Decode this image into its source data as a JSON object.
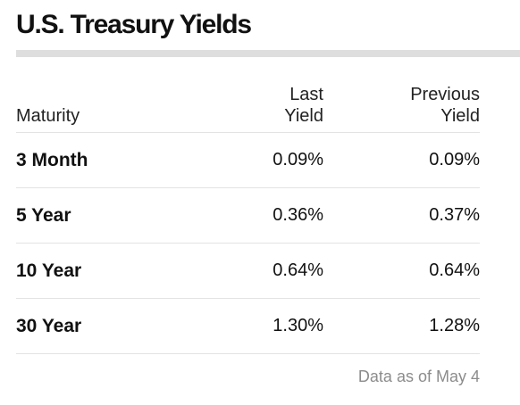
{
  "widget": {
    "title": "U.S. Treasury Yields",
    "footnote": "Data as of May 4"
  },
  "table": {
    "headers": {
      "maturity": "Maturity",
      "last_yield_line1": "Last",
      "last_yield_line2": "Yield",
      "previous_yield_line1": "Previous",
      "previous_yield_line2": "Yield"
    },
    "rows": [
      {
        "maturity": "3 Month",
        "last_yield": "0.09%",
        "previous_yield": "0.09%"
      },
      {
        "maturity": "5 Year",
        "last_yield": "0.36%",
        "previous_yield": "0.37%"
      },
      {
        "maturity": "10 Year",
        "last_yield": "0.64%",
        "previous_yield": "0.64%"
      },
      {
        "maturity": "30 Year",
        "last_yield": "1.30%",
        "previous_yield": "1.28%"
      }
    ]
  },
  "colors": {
    "title_rule": "#dedede",
    "row_divider": "#e3e3e3",
    "footnote_text": "#8c8c8c"
  }
}
